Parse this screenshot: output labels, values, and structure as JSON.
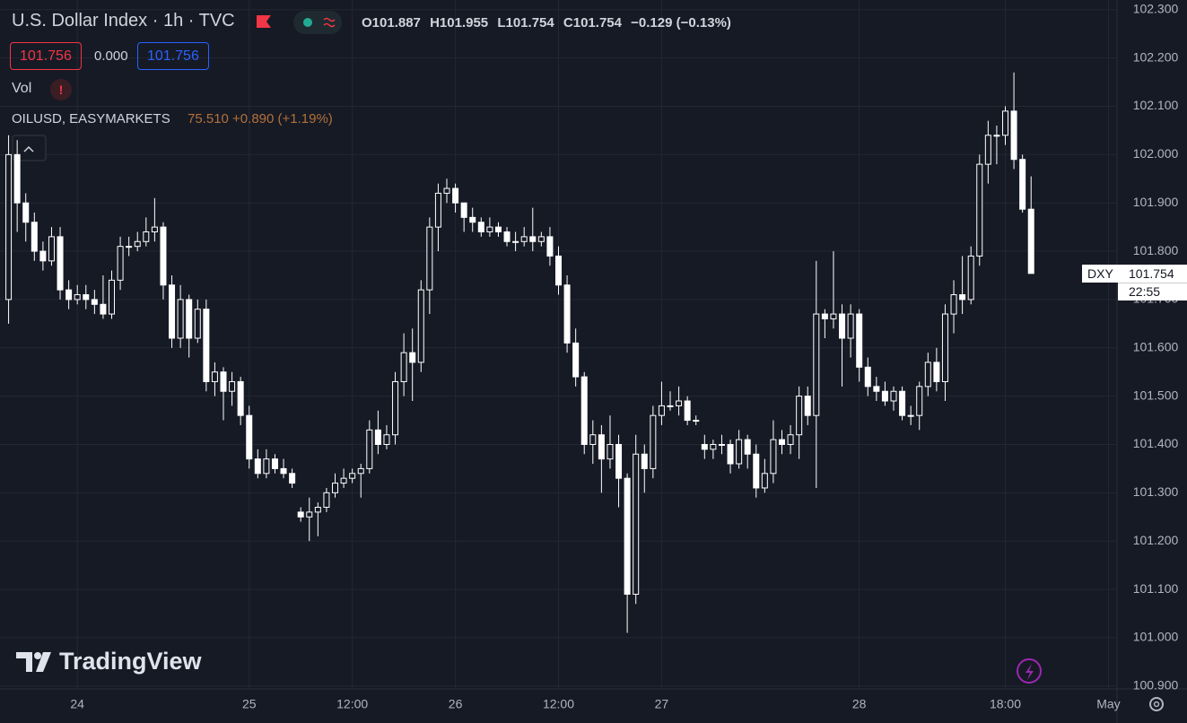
{
  "header": {
    "title": "U.S. Dollar Index · 1h · TVC",
    "ohlc_labels": [
      "O",
      "H",
      "L",
      "C"
    ],
    "change": "−0.129 (−0.13%)",
    "bid": 101.756,
    "spread": "0.000",
    "ask": 101.756,
    "volume_label": "Vol",
    "volume_alert": "!",
    "compare_symbol": "OILUSD, EASYMARKETS",
    "compare_quote": "75.510 +0.890 (+1.19%)",
    "branding": "TradingView"
  },
  "price_label": {
    "symbol": "DXY",
    "time": "22:55"
  },
  "chart_data": {
    "type": "candlestick",
    "color": "#ffffff",
    "grid": true,
    "x": [
      0,
      1,
      2,
      3,
      4,
      5,
      6,
      7,
      8,
      9,
      10,
      11,
      12,
      13,
      14,
      15,
      16,
      17,
      18,
      19,
      20,
      21,
      22,
      23,
      24,
      25,
      26,
      27,
      28,
      29,
      30,
      31,
      32,
      33,
      34,
      35,
      36,
      37,
      38,
      39,
      40,
      41,
      42,
      43,
      44,
      45,
      46,
      47,
      48,
      49,
      50,
      51,
      52,
      53,
      54,
      55,
      56,
      57,
      58,
      59,
      60,
      61,
      62,
      63,
      64,
      65,
      66,
      67,
      68,
      69,
      70,
      71,
      72,
      73,
      74,
      75,
      76,
      77,
      78,
      79,
      80,
      81,
      82,
      83,
      84,
      85,
      86,
      87,
      88,
      89,
      90,
      91,
      92,
      93,
      94,
      95,
      96,
      97,
      98,
      99,
      100,
      101,
      102,
      103,
      104,
      105,
      106,
      107,
      108,
      109,
      110,
      111,
      112,
      113,
      114,
      115,
      116,
      117,
      118,
      119
    ],
    "open": [
      101.7,
      102.0,
      101.9,
      101.86,
      101.8,
      101.78,
      101.83,
      101.72,
      101.7,
      101.71,
      101.7,
      101.69,
      101.67,
      101.74,
      101.81,
      101.81,
      101.82,
      101.84,
      101.85,
      101.73,
      101.62,
      101.7,
      101.62,
      101.68,
      101.53,
      101.55,
      101.51,
      101.53,
      101.46,
      101.37,
      101.34,
      101.37,
      101.35,
      101.34,
      101.26,
      101.25,
      101.26,
      101.27,
      101.3,
      101.32,
      101.33,
      101.34,
      101.35,
      101.43,
      101.4,
      101.42,
      101.53,
      101.59,
      101.57,
      101.72,
      101.85,
      101.92,
      101.93,
      101.9,
      101.87,
      101.86,
      101.84,
      101.85,
      101.84,
      101.82,
      101.82,
      101.83,
      101.82,
      101.83,
      101.79,
      101.73,
      101.61,
      101.54,
      101.4,
      101.42,
      101.37,
      101.4,
      101.33,
      101.09,
      101.38,
      101.35,
      101.46,
      101.48,
      101.48,
      101.49,
      101.45,
      101.4,
      101.39,
      101.4,
      101.4,
      101.36,
      101.41,
      101.38,
      101.31,
      101.34,
      101.41,
      101.4,
      101.42,
      101.5,
      101.46,
      101.67,
      101.66,
      101.67,
      101.62,
      101.67,
      101.56,
      101.52,
      101.51,
      101.49,
      101.51,
      101.46,
      101.46,
      101.52,
      101.57,
      101.53,
      101.67,
      101.71,
      101.7,
      101.79,
      101.98,
      102.04,
      102.04,
      102.09,
      101.99,
      101.887
    ],
    "high": [
      102.04,
      102.03,
      101.92,
      101.88,
      101.82,
      101.85,
      101.85,
      101.74,
      101.73,
      101.73,
      101.72,
      101.75,
      101.76,
      101.83,
      101.83,
      101.84,
      101.87,
      101.91,
      101.86,
      101.75,
      101.73,
      101.71,
      101.7,
      101.7,
      101.57,
      101.56,
      101.55,
      101.54,
      101.48,
      101.39,
      101.39,
      101.38,
      101.37,
      101.35,
      101.27,
      101.29,
      101.28,
      101.31,
      101.34,
      101.35,
      101.35,
      101.36,
      101.45,
      101.47,
      101.44,
      101.55,
      101.63,
      101.64,
      101.74,
      101.87,
      101.94,
      101.95,
      101.94,
      101.9,
      101.89,
      101.87,
      101.87,
      101.86,
      101.85,
      101.84,
      101.85,
      101.89,
      101.84,
      101.85,
      101.81,
      101.75,
      101.64,
      101.55,
      101.45,
      101.44,
      101.46,
      101.42,
      101.34,
      101.42,
      101.4,
      101.48,
      101.53,
      101.51,
      101.52,
      101.5,
      101.46,
      101.42,
      101.41,
      101.42,
      101.41,
      101.43,
      101.42,
      101.4,
      101.37,
      101.45,
      101.43,
      101.44,
      101.52,
      101.52,
      101.78,
      101.68,
      101.8,
      101.69,
      101.69,
      101.68,
      101.58,
      101.54,
      101.53,
      101.52,
      101.52,
      101.48,
      101.53,
      101.59,
      101.6,
      101.69,
      101.74,
      101.79,
      101.81,
      102.0,
      102.07,
      102.06,
      102.1,
      102.17,
      102.0,
      101.955
    ],
    "low": [
      101.65,
      101.84,
      101.82,
      101.78,
      101.76,
      101.77,
      101.7,
      101.68,
      101.69,
      101.68,
      101.67,
      101.66,
      101.66,
      101.72,
      101.79,
      101.8,
      101.81,
      101.82,
      101.7,
      101.6,
      101.6,
      101.58,
      101.61,
      101.51,
      101.5,
      101.45,
      101.48,
      101.44,
      101.35,
      101.33,
      101.33,
      101.34,
      101.33,
      101.31,
      101.24,
      101.2,
      101.21,
      101.26,
      101.29,
      101.31,
      101.32,
      101.29,
      101.34,
      101.38,
      101.39,
      101.4,
      101.5,
      101.49,
      101.55,
      101.67,
      101.8,
      101.9,
      101.88,
      101.84,
      101.84,
      101.83,
      101.83,
      101.83,
      101.81,
      101.8,
      101.81,
      101.8,
      101.81,
      101.77,
      101.71,
      101.59,
      101.52,
      101.38,
      101.36,
      101.3,
      101.35,
      101.27,
      101.01,
      101.07,
      101.3,
      101.33,
      101.44,
      101.47,
      101.46,
      101.44,
      101.44,
      101.37,
      101.37,
      101.38,
      101.34,
      101.35,
      101.35,
      101.29,
      101.3,
      101.32,
      101.38,
      101.38,
      101.37,
      101.44,
      101.31,
      101.62,
      101.64,
      101.52,
      101.58,
      101.53,
      101.5,
      101.49,
      101.48,
      101.47,
      101.45,
      101.44,
      101.43,
      101.5,
      101.51,
      101.49,
      101.63,
      101.67,
      101.69,
      101.77,
      101.94,
      101.98,
      102.02,
      101.97,
      101.88,
      101.754
    ],
    "close": [
      102.0,
      101.9,
      101.86,
      101.8,
      101.78,
      101.83,
      101.72,
      101.7,
      101.71,
      101.7,
      101.69,
      101.67,
      101.74,
      101.81,
      101.81,
      101.82,
      101.84,
      101.85,
      101.73,
      101.62,
      101.7,
      101.62,
      101.68,
      101.53,
      101.55,
      101.51,
      101.53,
      101.46,
      101.37,
      101.34,
      101.37,
      101.35,
      101.34,
      101.32,
      101.25,
      101.26,
      101.27,
      101.3,
      101.32,
      101.33,
      101.34,
      101.35,
      101.43,
      101.4,
      101.42,
      101.53,
      101.59,
      101.57,
      101.72,
      101.85,
      101.92,
      101.93,
      101.9,
      101.87,
      101.86,
      101.84,
      101.85,
      101.84,
      101.82,
      101.82,
      101.83,
      101.82,
      101.83,
      101.79,
      101.73,
      101.61,
      101.54,
      101.4,
      101.42,
      101.37,
      101.4,
      101.33,
      101.09,
      101.38,
      101.35,
      101.46,
      101.48,
      101.48,
      101.49,
      101.45,
      101.45,
      101.39,
      101.4,
      101.4,
      101.36,
      101.41,
      101.38,
      101.31,
      101.34,
      101.41,
      101.4,
      101.42,
      101.5,
      101.46,
      101.67,
      101.66,
      101.67,
      101.62,
      101.67,
      101.56,
      101.52,
      101.51,
      101.49,
      101.51,
      101.46,
      101.46,
      101.52,
      101.57,
      101.53,
      101.67,
      101.71,
      101.7,
      101.79,
      101.98,
      102.04,
      102.04,
      102.09,
      101.99,
      101.887,
      101.754
    ],
    "xlim": [
      -1,
      129
    ],
    "xticks": [
      {
        "value": 8,
        "label": "24"
      },
      {
        "value": 28,
        "label": "25"
      },
      {
        "value": 40,
        "label": "12:00"
      },
      {
        "value": 52,
        "label": "26"
      },
      {
        "value": 64,
        "label": "12:00"
      },
      {
        "value": 76,
        "label": "27"
      },
      {
        "value": 99,
        "label": "28"
      },
      {
        "value": 116,
        "label": "18:00"
      },
      {
        "value": 128,
        "label": "May"
      }
    ],
    "ylim": [
      100.894,
      102.32
    ],
    "yticks": [
      {
        "value": 100.9,
        "label": "100.900"
      },
      {
        "value": 101.0,
        "label": "101.000"
      },
      {
        "value": 101.1,
        "label": "101.100"
      },
      {
        "value": 101.2,
        "label": "101.200"
      },
      {
        "value": 101.3,
        "label": "101.300"
      },
      {
        "value": 101.4,
        "label": "101.400"
      },
      {
        "value": 101.5,
        "label": "101.500"
      },
      {
        "value": 101.6,
        "label": "101.600"
      },
      {
        "value": 101.7,
        "label": "101.700"
      },
      {
        "value": 101.8,
        "label": "101.800"
      },
      {
        "value": 101.9,
        "label": "101.900"
      },
      {
        "value": 102.0,
        "label": "102.000"
      },
      {
        "value": 102.1,
        "label": "102.100"
      },
      {
        "value": 102.2,
        "label": "102.200"
      },
      {
        "value": 102.3,
        "label": "102.300"
      }
    ]
  }
}
